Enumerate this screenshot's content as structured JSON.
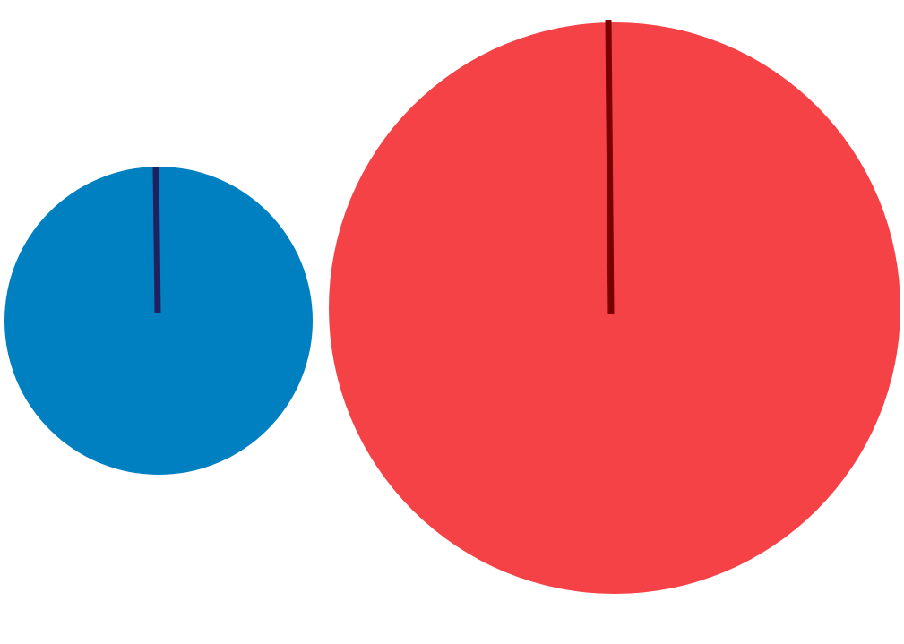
{
  "shapes": {
    "small_circle": {
      "fill_color": "#0080C0",
      "needle_color": "#1F2060"
    },
    "large_circle": {
      "fill_color": "#F54247",
      "needle_color": "#7A0000"
    }
  }
}
